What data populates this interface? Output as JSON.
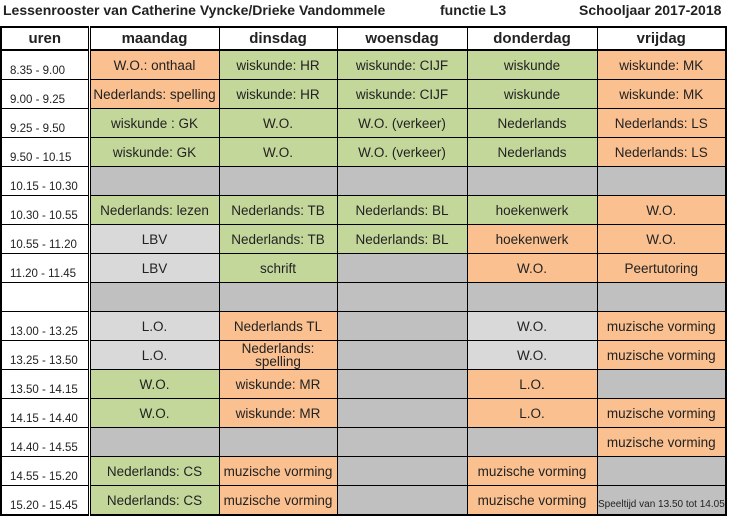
{
  "header": {
    "title": "Lessenrooster van Catherine Vyncke/Drieke Vandommele",
    "function": "functie L3",
    "school_year": "Schooljaar 2017-2018"
  },
  "colors": {
    "orange": "#fac090",
    "green": "#c4d79b",
    "gray": "#c0c0c0",
    "lightgray": "#d9d9d9"
  },
  "columns": [
    "uren",
    "maandag",
    "dinsdag",
    "woensdag",
    "donderdag",
    "vrijdag"
  ],
  "rows": [
    {
      "time": "8.35 - 9.00",
      "cells": [
        [
          "W.O.: onthaal",
          "orange"
        ],
        [
          "wiskunde: HR",
          "green"
        ],
        [
          "wiskunde: CIJF",
          "green"
        ],
        [
          "wiskunde",
          "green"
        ],
        [
          "wiskunde: MK",
          "orange"
        ]
      ]
    },
    {
      "time": "9.00 - 9.25",
      "cells": [
        [
          "Nederlands: spelling",
          "orange"
        ],
        [
          "wiskunde: HR",
          "green"
        ],
        [
          "wiskunde: CIJF",
          "green"
        ],
        [
          "wiskunde",
          "green"
        ],
        [
          "wiskunde: MK",
          "orange"
        ]
      ]
    },
    {
      "time": "9.25 - 9.50",
      "cells": [
        [
          "wiskunde : GK",
          "green"
        ],
        [
          "W.O.",
          "green"
        ],
        [
          "W.O. (verkeer)",
          "green"
        ],
        [
          "Nederlands",
          "green"
        ],
        [
          "Nederlands: LS",
          "orange"
        ]
      ]
    },
    {
      "time": "9.50 - 10.15",
      "cells": [
        [
          "wiskunde: GK",
          "green"
        ],
        [
          "W.O.",
          "green"
        ],
        [
          "W.O. (verkeer)",
          "green"
        ],
        [
          "Nederlands",
          "green"
        ],
        [
          "Nederlands: LS",
          "orange"
        ]
      ]
    },
    {
      "time": "10.15 - 10.30",
      "cells": [
        [
          "",
          "gray"
        ],
        [
          "",
          "gray"
        ],
        [
          "",
          "gray"
        ],
        [
          "",
          "gray"
        ],
        [
          "",
          "gray"
        ]
      ]
    },
    {
      "time": "10.30 - 10.55",
      "cells": [
        [
          "Nederlands: lezen",
          "green"
        ],
        [
          "Nederlands: TB",
          "green"
        ],
        [
          "Nederlands: BL",
          "green"
        ],
        [
          "hoekenwerk",
          "green"
        ],
        [
          "W.O.",
          "orange"
        ]
      ]
    },
    {
      "time": "10.55 - 11.20",
      "cells": [
        [
          "LBV",
          "lightgray"
        ],
        [
          "Nederlands: TB",
          "green"
        ],
        [
          "Nederlands: BL",
          "green"
        ],
        [
          "hoekenwerk",
          "orange"
        ],
        [
          "W.O.",
          "orange"
        ]
      ]
    },
    {
      "time": "11.20 - 11.45",
      "cells": [
        [
          "LBV",
          "lightgray"
        ],
        [
          "schrift",
          "green"
        ],
        [
          "",
          "gray"
        ],
        [
          "W.O.",
          "orange"
        ],
        [
          "Peertutoring",
          "orange"
        ]
      ]
    },
    {
      "time": "",
      "lunch": true,
      "cells": [
        [
          "",
          "gray"
        ],
        [
          "",
          "gray"
        ],
        [
          "",
          "gray"
        ],
        [
          "",
          "gray"
        ],
        [
          "",
          "gray"
        ]
      ]
    },
    {
      "time": "13.00 - 13.25",
      "cells": [
        [
          "L.O.",
          "lightgray"
        ],
        [
          "Nederlands TL",
          "orange"
        ],
        [
          "",
          "gray"
        ],
        [
          "W.O.",
          "lightgray"
        ],
        [
          "muzische vorming",
          "orange"
        ]
      ]
    },
    {
      "time": "13.25 - 13.50",
      "cells": [
        [
          "L.O.",
          "lightgray"
        ],
        [
          "Nederlands: spelling",
          "orange"
        ],
        [
          "",
          "gray"
        ],
        [
          "W.O.",
          "lightgray"
        ],
        [
          "muzische vorming",
          "orange"
        ]
      ]
    },
    {
      "time": "13.50 - 14.15",
      "cells": [
        [
          "W.O.",
          "green"
        ],
        [
          "wiskunde: MR",
          "orange"
        ],
        [
          "",
          "gray"
        ],
        [
          "L.O.",
          "orange"
        ],
        [
          "",
          "gray"
        ]
      ]
    },
    {
      "time": "14.15 - 14.40",
      "cells": [
        [
          "W.O.",
          "green"
        ],
        [
          "wiskunde: MR",
          "orange"
        ],
        [
          "",
          "gray"
        ],
        [
          "L.O.",
          "orange"
        ],
        [
          "muzische vorming",
          "orange"
        ]
      ]
    },
    {
      "time": "14.40 - 14.55",
      "cells": [
        [
          "",
          "gray"
        ],
        [
          "",
          "gray"
        ],
        [
          "",
          "gray"
        ],
        [
          "",
          "gray"
        ],
        [
          "muzische vorming",
          "orange"
        ]
      ]
    },
    {
      "time": "14.55 - 15.20",
      "cells": [
        [
          "Nederlands: CS",
          "green"
        ],
        [
          "muzische vorming",
          "orange"
        ],
        [
          "",
          "gray"
        ],
        [
          "muzische vorming",
          "orange"
        ],
        [
          "",
          "gray"
        ]
      ]
    },
    {
      "time": "15.20 - 15.45",
      "cells": [
        [
          "Nederlands: CS",
          "green"
        ],
        [
          "muzische vorming",
          "orange"
        ],
        [
          "",
          "gray"
        ],
        [
          "muzische vorming",
          "orange"
        ],
        [
          "",
          "gray"
        ]
      ]
    }
  ],
  "footer_note": "Speeltijd van 13.50 tot 14.05"
}
